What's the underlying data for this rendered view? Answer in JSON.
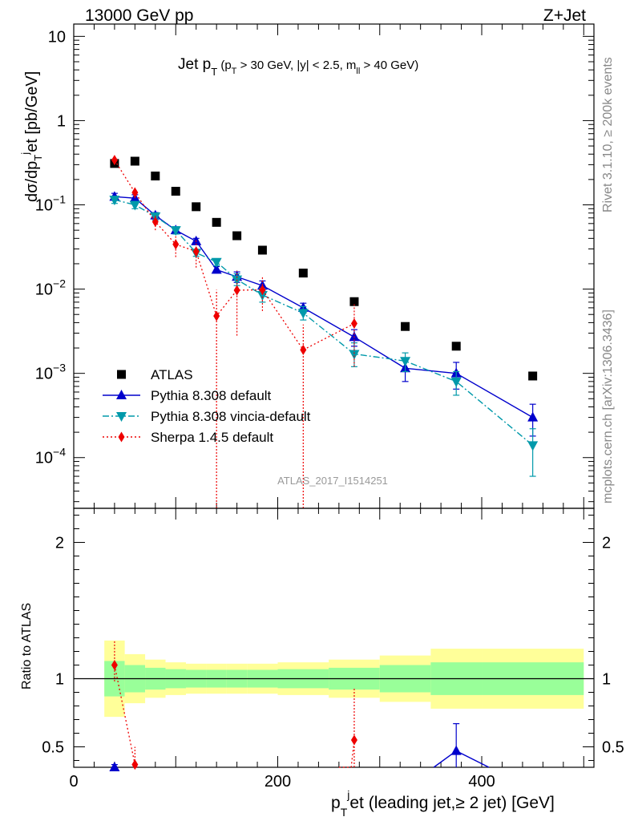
{
  "header": {
    "left": "13000 GeV pp",
    "right": "Z+Jet"
  },
  "side": {
    "rivet": "Rivet 3.1.10, ≥ 200k events",
    "mcplots": "mcplots.cern.ch [arXiv:1306.3436]"
  },
  "watermark": "ATLAS_2017_I1514251",
  "colors": {
    "atlas": "#000000",
    "pythia": "#0000cc",
    "vincia": "#0099aa",
    "sherpa": "#ee0000",
    "band_inner": "#99ff99",
    "band_outer": "#ffff99"
  },
  "chart_data": [
    {
      "type": "scatter",
      "title": "Jet pT (pT > 30 GeV, |y| < 2.5, mll > 40 GeV)",
      "ylabel": "dσ/dpTjet [pb/GeV]",
      "xlim": [
        0,
        510
      ],
      "ylim": [
        2.5e-05,
        14
      ],
      "yscale": "log",
      "yticks": [
        "10^-4",
        "10^-3",
        "10^-2",
        "10^-1",
        "1",
        "10"
      ],
      "legend_position": "bottom-left",
      "x": [
        40,
        60,
        80,
        100,
        120,
        140,
        160,
        185,
        225,
        275,
        325,
        375,
        450
      ],
      "series": [
        {
          "name": "ATLAS",
          "marker": "square",
          "values": [
            0.31,
            0.33,
            0.22,
            0.145,
            0.095,
            0.062,
            0.043,
            0.029,
            0.0155,
            0.0071,
            0.0036,
            0.0021,
            0.00093
          ]
        },
        {
          "name": "Pythia 8.308 default",
          "marker": "triangle-up",
          "line": "solid",
          "values": [
            0.125,
            0.12,
            0.075,
            0.05,
            0.037,
            0.017,
            0.014,
            0.011,
            0.006,
            0.0027,
            0.00115,
            0.001,
            0.0003
          ],
          "err_lo": [
            0.113,
            0.108,
            0.069,
            0.046,
            0.034,
            0.0155,
            0.012,
            0.0095,
            0.0052,
            0.0021,
            0.0008,
            0.00065,
            0.00018
          ],
          "err_hi": [
            0.137,
            0.132,
            0.081,
            0.054,
            0.04,
            0.0185,
            0.016,
            0.0125,
            0.0068,
            0.0033,
            0.0015,
            0.00135,
            0.00043
          ]
        },
        {
          "name": "Pythia 8.308 vincia-default",
          "marker": "triangle-down",
          "line": "dashdot",
          "values": [
            0.115,
            0.1,
            0.073,
            0.05,
            0.027,
            0.021,
            0.013,
            0.0085,
            0.0052,
            0.0017,
            0.0014,
            0.0008,
            0.00014
          ],
          "err_lo": [
            0.104,
            0.09,
            0.066,
            0.045,
            0.0245,
            0.019,
            0.011,
            0.007,
            0.0043,
            0.0012,
            0.00105,
            0.00055,
            6e-05
          ],
          "err_hi": [
            0.126,
            0.11,
            0.08,
            0.055,
            0.0295,
            0.023,
            0.0152,
            0.0102,
            0.0062,
            0.0023,
            0.00175,
            0.00105,
            0.00022
          ]
        },
        {
          "name": "Sherpa 1.4.5 default",
          "marker": "diamond",
          "line": "dotted",
          "values": [
            0.34,
            0.14,
            0.063,
            0.034,
            0.028,
            0.0048,
            0.0097,
            0.0098,
            0.0019,
            0.0039,
            null,
            null,
            null
          ],
          "err_lo": [
            0.3,
            0.12,
            0.05,
            0.024,
            0.018,
            2e-05,
            0.0028,
            0.0055,
            2e-05,
            0.0012,
            null,
            null,
            null
          ],
          "err_hi": [
            0.38,
            0.16,
            0.076,
            0.044,
            0.038,
            0.0098,
            0.0166,
            0.014,
            0.0038,
            0.0066,
            null,
            null,
            null
          ]
        }
      ]
    },
    {
      "type": "line",
      "xlabel": "pTjet (leading jet,≥ 2 jet) [GeV]",
      "ylabel": "Ratio to ATLAS",
      "xlim": [
        0,
        510
      ],
      "ylim": [
        0.35,
        2.25
      ],
      "xticks": [
        "0",
        "200",
        "400"
      ],
      "yticks": [
        "0.5",
        "1",
        "2"
      ],
      "band_edges": [
        30,
        50,
        70,
        90,
        110,
        130,
        150,
        170,
        200,
        250,
        300,
        350,
        400,
        500
      ],
      "band_inner": [
        0.13,
        0.1,
        0.08,
        0.07,
        0.065,
        0.065,
        0.065,
        0.065,
        0.07,
        0.08,
        0.1,
        0.12,
        0.12
      ],
      "band_outer": [
        0.28,
        0.18,
        0.14,
        0.12,
        0.11,
        0.11,
        0.11,
        0.11,
        0.12,
        0.14,
        0.17,
        0.22,
        0.22
      ],
      "series": [
        {
          "name": "Sherpa 1.4.5 default",
          "x": [
            40,
            60,
            275
          ],
          "values": [
            1.1,
            0.37,
            0.55
          ],
          "err_lo": [
            0.98,
            0.3,
            0.2
          ],
          "err_hi": [
            1.28,
            0.5,
            0.93
          ]
        },
        {
          "name": "Pythia 8.308 default",
          "x": [
            40,
            375
          ],
          "values": [
            0.35,
            0.47
          ],
          "err_lo": [
            0.33,
            0.3
          ],
          "err_hi": [
            0.37,
            0.67
          ]
        }
      ],
      "sherpa_offscale": {
        "x": [
          260,
          272
        ],
        "values": [
          0.2,
          0.35
        ]
      },
      "pythia_offscale": {
        "x": [
          407
        ],
        "values": [
          0.3
        ]
      }
    }
  ]
}
